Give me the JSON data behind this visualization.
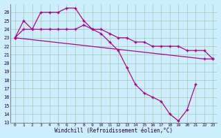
{
  "xlabel": "Windchill (Refroidissement éolien,°C)",
  "bg_color": "#cceeff",
  "grid_color": "#aaccbb",
  "line_color": "#aa0088",
  "ylim": [
    13,
    27
  ],
  "xlim": [
    -0.5,
    23.5
  ],
  "yticks": [
    13,
    14,
    15,
    16,
    17,
    18,
    19,
    20,
    21,
    22,
    23,
    24,
    25,
    26
  ],
  "xticks": [
    0,
    1,
    2,
    3,
    4,
    5,
    6,
    7,
    8,
    9,
    10,
    11,
    12,
    13,
    14,
    15,
    16,
    17,
    18,
    19,
    20,
    21,
    22,
    23
  ],
  "line1_x": [
    0,
    1,
    2,
    3,
    4,
    5,
    6,
    7,
    8,
    9,
    10,
    11,
    12,
    13,
    14,
    15,
    16,
    17,
    18,
    19,
    20,
    21,
    22,
    23
  ],
  "line1_y": [
    23.0,
    24.0,
    24.0,
    26.0,
    26.0,
    26.0,
    26.5,
    26.5,
    25.0,
    24.0,
    23.5,
    22.5,
    21.5,
    19.5,
    17.5,
    16.5,
    16.0,
    15.5,
    14.0,
    13.2,
    14.5,
    17.5,
    null,
    null
  ],
  "line2_x": [
    0,
    22,
    23
  ],
  "line2_y": [
    23.0,
    20.5,
    20.5
  ],
  "line3_x": [
    0,
    1,
    2,
    3,
    4,
    5,
    6,
    7,
    8,
    9,
    10,
    11,
    12,
    13,
    14,
    15,
    16,
    17,
    18,
    19,
    20,
    21,
    22,
    23
  ],
  "line3_y": [
    23.0,
    25.0,
    24.0,
    24.0,
    24.0,
    24.0,
    24.0,
    24.0,
    24.5,
    24.0,
    24.0,
    23.5,
    23.0,
    23.0,
    22.5,
    22.5,
    22.0,
    22.0,
    22.0,
    22.0,
    21.5,
    21.5,
    21.5,
    20.5
  ]
}
